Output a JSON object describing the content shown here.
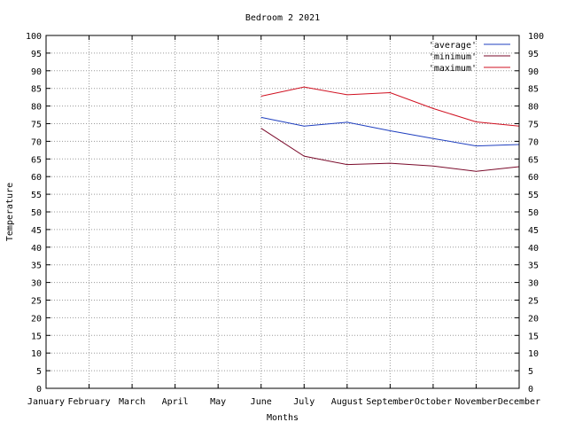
{
  "chart_data": {
    "type": "line",
    "title": "Bedroom 2 2021",
    "xlabel": "Months",
    "ylabel": "Temperature",
    "categories": [
      "January",
      "February",
      "March",
      "April",
      "May",
      "June",
      "July",
      "August",
      "September",
      "October",
      "November",
      "December"
    ],
    "ylim": [
      0,
      100
    ],
    "yticks": [
      0,
      5,
      10,
      15,
      20,
      25,
      30,
      35,
      40,
      45,
      50,
      55,
      60,
      65,
      70,
      75,
      80,
      85,
      90,
      95,
      100
    ],
    "grid": true,
    "legend_position": "top-right",
    "series": [
      {
        "name": "'average'",
        "color": "#1f3fbf",
        "values": [
          null,
          null,
          null,
          null,
          null,
          76.8,
          74.3,
          75.4,
          73.0,
          70.8,
          68.7,
          69.1
        ]
      },
      {
        "name": "'minimum'",
        "color": "#7a0a2a",
        "values": [
          null,
          null,
          null,
          null,
          null,
          73.7,
          65.8,
          63.4,
          63.8,
          63.0,
          61.5,
          62.8
        ]
      },
      {
        "name": "'maximum'",
        "color": "#d01020",
        "values": [
          null,
          null,
          null,
          null,
          null,
          82.8,
          85.4,
          83.2,
          83.8,
          79.3,
          75.5,
          74.3
        ]
      }
    ]
  }
}
